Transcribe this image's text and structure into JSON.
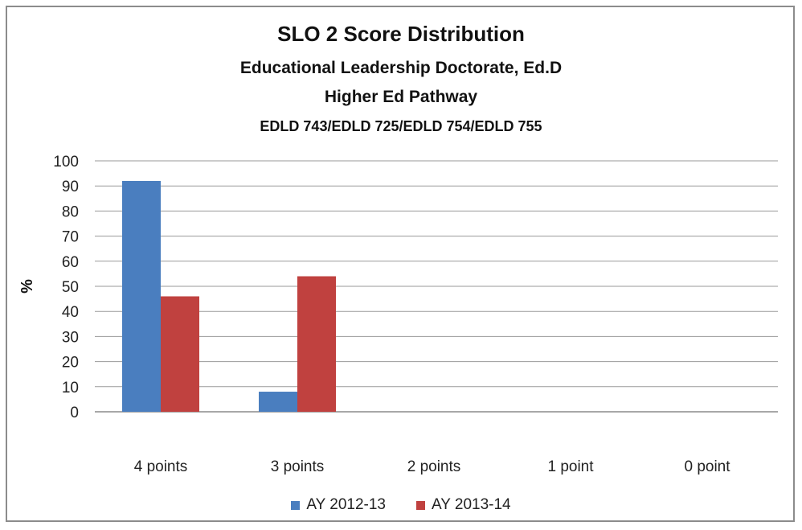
{
  "chart_data": {
    "type": "bar",
    "title": "SLO 2 Score Distribution",
    "subtitles": [
      "Educational Leadership Doctorate, Ed.D",
      "Higher Ed Pathway",
      "EDLD 743/EDLD 725/EDLD 754/EDLD 755"
    ],
    "xlabel": "",
    "ylabel": "%",
    "ylim": [
      0,
      100
    ],
    "yticks": [
      0,
      10,
      20,
      30,
      40,
      50,
      60,
      70,
      80,
      90,
      100
    ],
    "grid": true,
    "legend_position": "bottom",
    "categories": [
      "4 points",
      "3 points",
      "2 points",
      "1 point",
      "0 point"
    ],
    "series": [
      {
        "name": "AY 2012-13",
        "color": "#4a7ebf",
        "values": [
          92,
          8,
          0,
          0,
          0
        ]
      },
      {
        "name": "AY 2013-14",
        "color": "#c0413f",
        "values": [
          46,
          54,
          0,
          0,
          0
        ]
      }
    ]
  }
}
